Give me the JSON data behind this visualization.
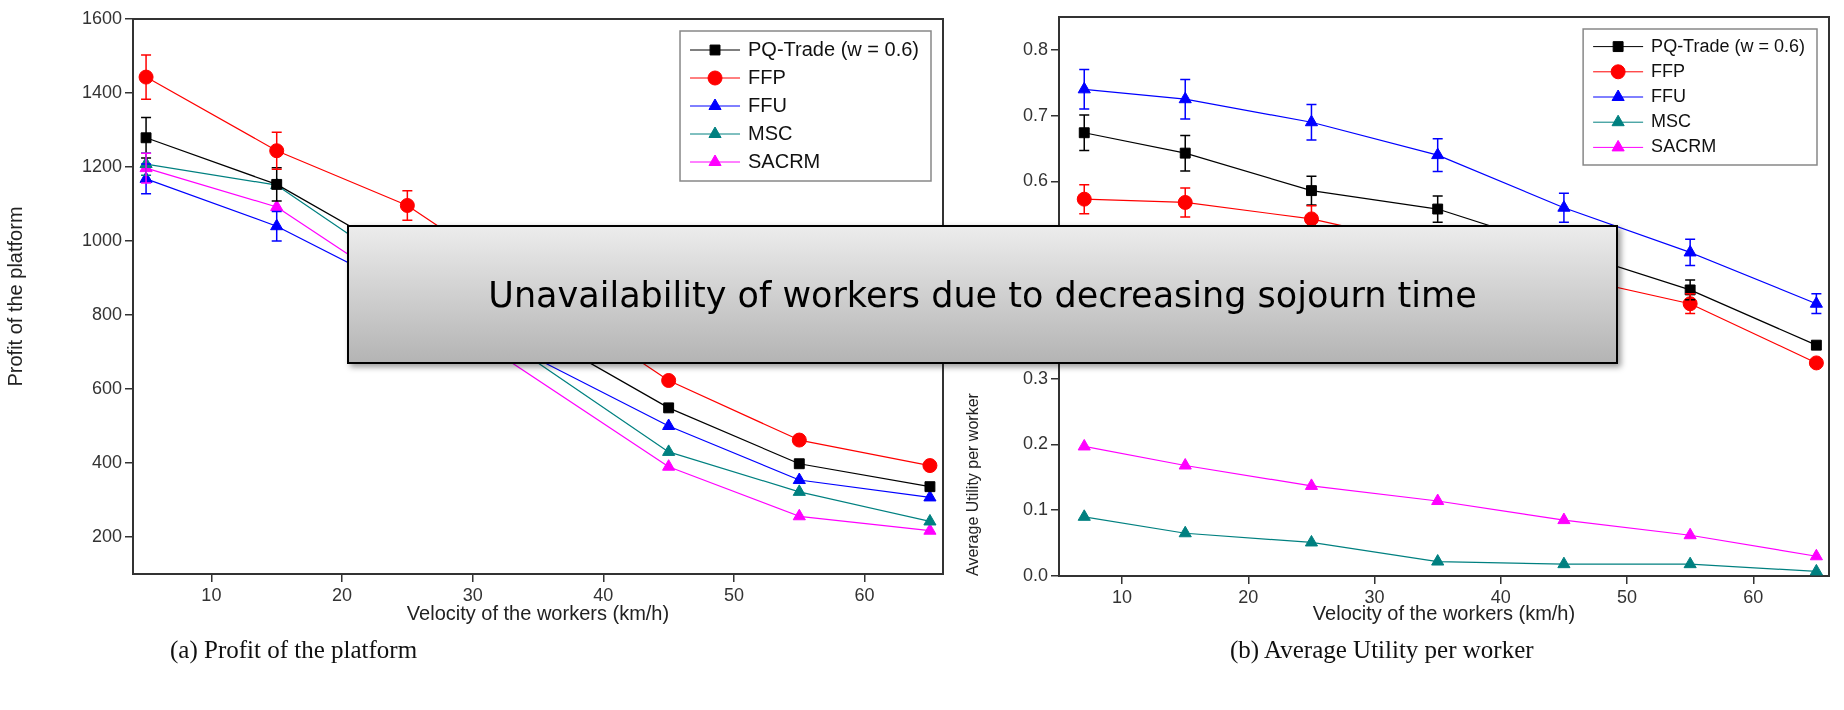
{
  "chart_data": [
    {
      "type": "line",
      "title": "(a) Profit of the platform",
      "xlabel": "Velocity of the workers (km/h)",
      "ylabel": "Profit of the platform",
      "x": [
        5,
        15,
        25,
        35,
        45,
        55,
        65
      ],
      "xlim": [
        4,
        66
      ],
      "xticks": [
        10,
        20,
        30,
        40,
        50,
        60
      ],
      "ylim": [
        100,
        1600
      ],
      "yticks": [
        200,
        400,
        600,
        800,
        1000,
        1200,
        1400,
        1600
      ],
      "legend": "top right",
      "annotations": [
        "Unavailability of workers due to decreasing sojourn time"
      ],
      "series": [
        {
          "name": "PQ-Trade (w = 0.6)",
          "color": "#000000",
          "marker": "square",
          "values": [
            1279,
            1153,
            null,
            null,
            549,
            398,
            336
          ],
          "errors": [
            55,
            45,
            null,
            null,
            null,
            null,
            null
          ]
        },
        {
          "name": "FFP",
          "color": "#ff0000",
          "marker": "circle",
          "values": [
            1443,
            1244,
            1096,
            null,
            623,
            462,
            393
          ],
          "errors": [
            60,
            50,
            40,
            null,
            null,
            null,
            null
          ]
        },
        {
          "name": "FFU",
          "color": "#0000ff",
          "marker": "triangle",
          "values": [
            1168,
            1040,
            null,
            null,
            500,
            354,
            307
          ],
          "errors": [
            40,
            40,
            null,
            null,
            null,
            null,
            null
          ]
        },
        {
          "name": "MSC",
          "color": "#008080",
          "marker": "triangle",
          "values": [
            1208,
            1151,
            null,
            null,
            430,
            322,
            242
          ],
          "errors": [
            30,
            null,
            null,
            null,
            null,
            null,
            null
          ]
        },
        {
          "name": "SACRM",
          "color": "#ff00ff",
          "marker": "triangle",
          "values": [
            1197,
            1092,
            null,
            null,
            390,
            256,
            217
          ],
          "errors": [
            40,
            null,
            null,
            null,
            null,
            null,
            null
          ]
        }
      ]
    },
    {
      "type": "line",
      "title": "(b) Average Utility per worker",
      "xlabel": "Velocity of the workers (km/h)",
      "ylabel": "Average Utility per worker",
      "x": [
        7,
        15,
        25,
        35,
        45,
        55,
        65
      ],
      "xlim": [
        5,
        66
      ],
      "xticks": [
        10,
        20,
        30,
        40,
        50,
        60
      ],
      "ylim": [
        0,
        0.85
      ],
      "yticks": [
        {
          "value": 0,
          "label": "0.0"
        },
        0.1,
        0.2,
        0.3,
        0.6,
        0.7,
        0.8
      ],
      "legend": "top right",
      "series": [
        {
          "name": "PQ-Trade (w = 0.6)",
          "color": "#000000",
          "marker": "square",
          "values": [
            0.674,
            0.643,
            0.586,
            0.558,
            null,
            0.435,
            0.351
          ],
          "errors": [
            0.027,
            0.027,
            0.022,
            0.02,
            null,
            0.015,
            null
          ]
        },
        {
          "name": "FFP",
          "color": "#ff0000",
          "marker": "circle",
          "values": [
            0.573,
            0.568,
            0.543,
            null,
            null,
            0.414,
            0.324
          ],
          "errors": [
            0.022,
            0.022,
            0.02,
            null,
            null,
            0.015,
            null
          ]
        },
        {
          "name": "FFU",
          "color": "#0000ff",
          "marker": "triangle",
          "values": [
            0.74,
            0.725,
            0.69,
            0.64,
            0.56,
            0.492,
            0.414
          ],
          "errors": [
            0.03,
            0.03,
            0.027,
            0.025,
            0.022,
            0.02,
            0.015
          ]
        },
        {
          "name": "MSC",
          "color": "#008080",
          "marker": "triangle",
          "values": [
            0.09,
            0.065,
            0.051,
            0.022,
            0.018,
            0.018,
            0.007
          ]
        },
        {
          "name": "SACRM",
          "color": "#ff00ff",
          "marker": "triangle",
          "values": [
            0.197,
            0.168,
            0.137,
            0.114,
            0.085,
            0.062,
            0.03
          ]
        }
      ]
    }
  ]
}
